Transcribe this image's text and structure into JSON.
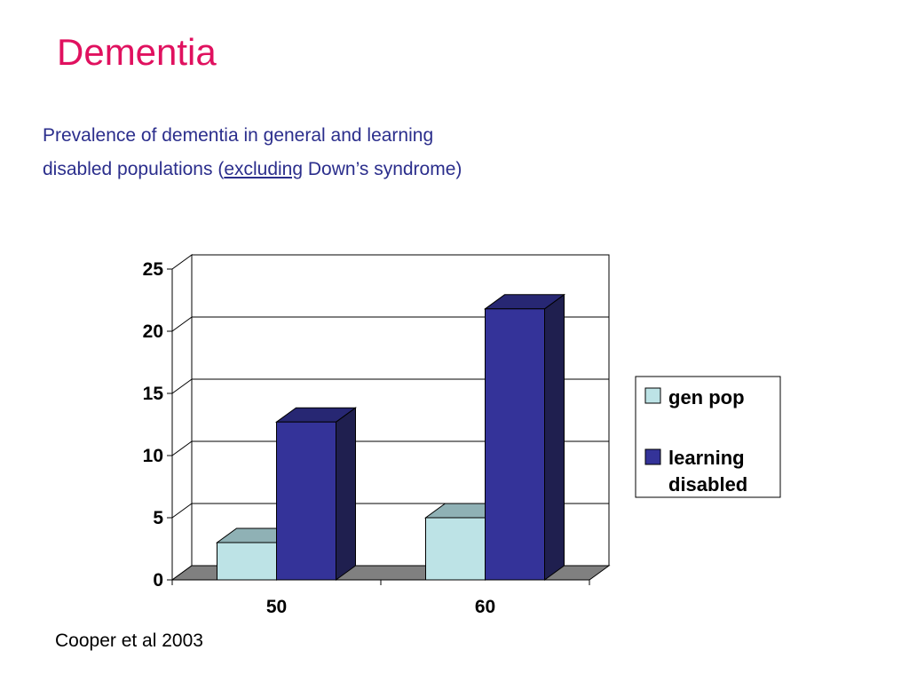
{
  "slide": {
    "title": "Dementia",
    "subtitle_line1": "Prevalence of dementia in general and learning",
    "subtitle_line2_pre": "disabled populations (",
    "subtitle_line2_underlined": "excluding",
    "subtitle_line2_post": " Down’s syndrome)",
    "citation": "Cooper et al 2003"
  },
  "colors": {
    "title": "#e0115f",
    "subtitle": "#2b2e8c",
    "gen_pop": "#bde3e6",
    "learning_disabled": "#343399",
    "floor": "#808080"
  },
  "chart_data": {
    "type": "bar",
    "style": "3d-clustered-column",
    "categories": [
      "50",
      "60"
    ],
    "series": [
      {
        "name": "gen pop",
        "values": [
          3,
          5
        ]
      },
      {
        "name": "learning disabled",
        "values": [
          12.7,
          21.8
        ]
      }
    ],
    "ylim": [
      0,
      25
    ],
    "yticks": [
      "0",
      "5",
      "10",
      "15",
      "20",
      "25"
    ],
    "grid": true,
    "legend": {
      "placement": "right",
      "entries": [
        "gen pop",
        "learning",
        "disabled"
      ]
    },
    "xlabel": "",
    "ylabel": "",
    "title": ""
  }
}
